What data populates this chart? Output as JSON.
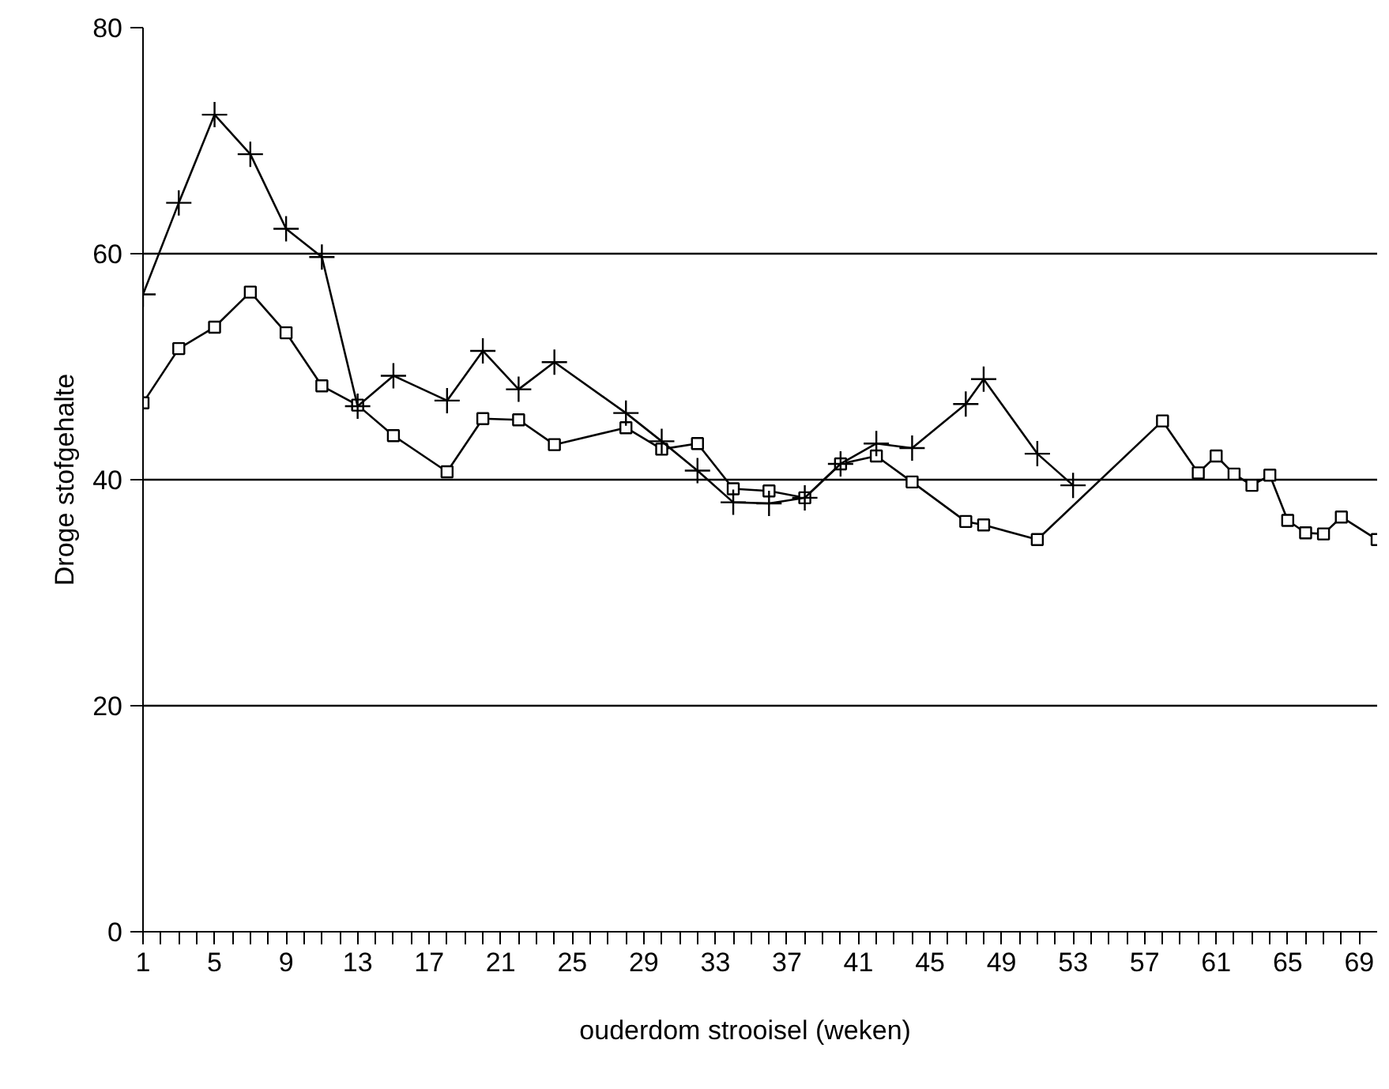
{
  "chart_data": {
    "type": "line",
    "xlabel": "ouderdom   strooisel   (weken)",
    "ylabel": "Droge stofgehalte",
    "xlim": [
      1,
      70
    ],
    "ylim": [
      0,
      80
    ],
    "xticks": [
      1,
      {
        "value": 2,
        "label": null
      },
      {
        "value": 3,
        "label": null
      },
      {
        "value": 4,
        "label": null
      },
      5,
      {
        "value": 6,
        "label": null
      },
      {
        "value": 7,
        "label": null
      },
      {
        "value": 8,
        "label": null
      },
      9,
      {
        "value": 10,
        "label": null
      },
      {
        "value": 11,
        "label": null
      },
      {
        "value": 12,
        "label": null
      },
      13,
      {
        "value": 14,
        "label": null
      },
      {
        "value": 15,
        "label": null
      },
      {
        "value": 16,
        "label": null
      },
      17,
      {
        "value": 18,
        "label": null
      },
      {
        "value": 19,
        "label": null
      },
      {
        "value": 20,
        "label": null
      },
      21,
      {
        "value": 22,
        "label": null
      },
      {
        "value": 23,
        "label": null
      },
      {
        "value": 24,
        "label": null
      },
      25,
      {
        "value": 26,
        "label": null
      },
      {
        "value": 27,
        "label": null
      },
      {
        "value": 28,
        "label": null
      },
      29,
      {
        "value": 30,
        "label": null
      },
      {
        "value": 31,
        "label": null
      },
      {
        "value": 32,
        "label": null
      },
      33,
      {
        "value": 34,
        "label": null
      },
      {
        "value": 35,
        "label": null
      },
      {
        "value": 36,
        "label": null
      },
      37,
      {
        "value": 38,
        "label": null
      },
      {
        "value": 39,
        "label": null
      },
      {
        "value": 40,
        "label": null
      },
      41,
      {
        "value": 42,
        "label": null
      },
      {
        "value": 43,
        "label": null
      },
      {
        "value": 44,
        "label": null
      },
      45,
      {
        "value": 46,
        "label": null
      },
      {
        "value": 47,
        "label": null
      },
      {
        "value": 48,
        "label": null
      },
      49,
      {
        "value": 50,
        "label": null
      },
      {
        "value": 51,
        "label": null
      },
      {
        "value": 52,
        "label": null
      },
      53,
      {
        "value": 54,
        "label": null
      },
      {
        "value": 55,
        "label": null
      },
      {
        "value": 56,
        "label": null
      },
      57,
      {
        "value": 58,
        "label": null
      },
      {
        "value": 59,
        "label": null
      },
      {
        "value": 60,
        "label": null
      },
      61,
      {
        "value": 62,
        "label": null
      },
      {
        "value": 63,
        "label": null
      },
      {
        "value": 64,
        "label": null
      },
      65,
      {
        "value": 66,
        "label": null
      },
      {
        "value": 67,
        "label": null
      },
      {
        "value": 68,
        "label": null
      },
      69
    ],
    "yticks": [
      0,
      20,
      40,
      60,
      80
    ],
    "grid": "y",
    "series": [
      {
        "color": "#000000",
        "marker": "square",
        "x": [
          1,
          3,
          5,
          7,
          9,
          11,
          13,
          15,
          18,
          20,
          22,
          24,
          28,
          30,
          32,
          34,
          36,
          38,
          40,
          42,
          44,
          47,
          48,
          51,
          58,
          60,
          61,
          62,
          63,
          64,
          65,
          66,
          67,
          68,
          70
        ],
        "values": [
          46.8,
          51.6,
          53.5,
          56.6,
          53.0,
          48.3,
          46.6,
          43.9,
          40.7,
          45.4,
          45.3,
          43.1,
          44.6,
          42.7,
          43.2,
          39.2,
          39.0,
          38.4,
          41.4,
          42.1,
          39.8,
          36.3,
          36.0,
          34.7,
          45.2,
          40.6,
          42.1,
          40.5,
          39.5,
          40.4,
          36.4,
          35.3,
          35.2,
          36.7,
          34.7
        ]
      },
      {
        "color": "#000000",
        "marker": "cross",
        "x": [
          1,
          3,
          5,
          7,
          9,
          11,
          13,
          15,
          18,
          20,
          22,
          24,
          28,
          30,
          32,
          34,
          36,
          38,
          40,
          42,
          44,
          47,
          48,
          51,
          53
        ],
        "values": [
          56.4,
          64.5,
          72.3,
          68.8,
          62.2,
          59.7,
          46.5,
          49.2,
          47.0,
          51.4,
          48.0,
          50.4,
          45.9,
          43.4,
          40.8,
          38.0,
          37.9,
          38.4,
          41.4,
          43.2,
          42.8,
          46.7,
          48.9,
          42.3,
          39.5
        ]
      }
    ]
  }
}
